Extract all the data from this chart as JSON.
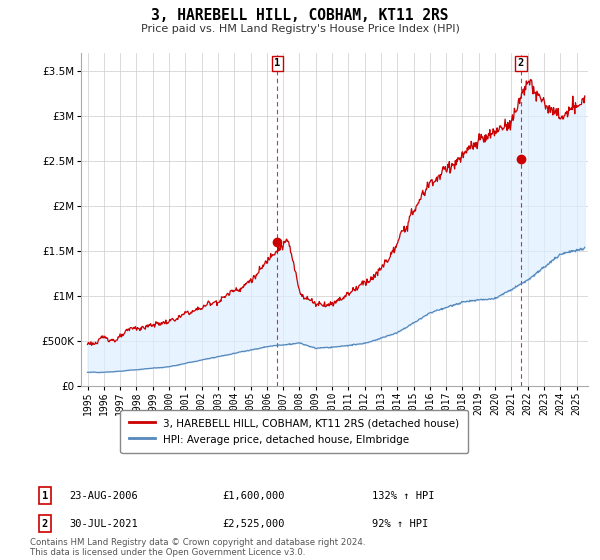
{
  "title": "3, HAREBELL HILL, COBHAM, KT11 2RS",
  "subtitle": "Price paid vs. HM Land Registry's House Price Index (HPI)",
  "legend_line1": "3, HAREBELL HILL, COBHAM, KT11 2RS (detached house)",
  "legend_line2": "HPI: Average price, detached house, Elmbridge",
  "annotation1_date": "23-AUG-2006",
  "annotation1_price": "£1,600,000",
  "annotation1_hpi": "132% ↑ HPI",
  "annotation2_date": "30-JUL-2021",
  "annotation2_price": "£2,525,000",
  "annotation2_hpi": "92% ↑ HPI",
  "footer": "Contains HM Land Registry data © Crown copyright and database right 2024.\nThis data is licensed under the Open Government Licence v3.0.",
  "red_color": "#cc0000",
  "blue_color": "#5588bb",
  "fill_color": "#ddeeff",
  "dashed_color": "#cc0000",
  "ylim": [
    0,
    3700000
  ],
  "yticks": [
    0,
    500000,
    1000000,
    1500000,
    2000000,
    2500000,
    3000000,
    3500000
  ],
  "purchase1_year": 2006.646,
  "purchase1_value": 1600000,
  "purchase2_year": 2021.581,
  "purchase2_value": 2525000,
  "background_color": "#ffffff",
  "grid_color": "#cccccc"
}
